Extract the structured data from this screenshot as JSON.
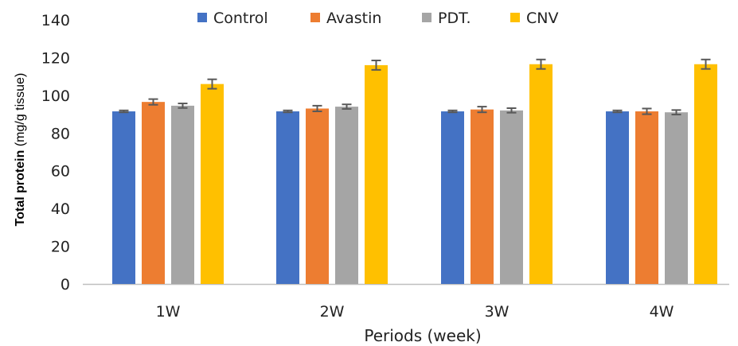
{
  "chart_data": {
    "type": "bar",
    "title": "",
    "categories": [
      "1W",
      "2W",
      "3W",
      "4W"
    ],
    "series": [
      {
        "name": "Control",
        "values": [
          91.5,
          91.5,
          91.5,
          91.5
        ],
        "errors": [
          0.5,
          0.5,
          0.5,
          0.5
        ],
        "color": "#4472C4"
      },
      {
        "name": "Avastin",
        "values": [
          96.5,
          93,
          92.5,
          91.5
        ],
        "errors": [
          1.5,
          1.5,
          1.5,
          1.5
        ],
        "color": "#ED7D31"
      },
      {
        "name": "PDT.",
        "values": [
          94.5,
          94,
          92,
          91
        ],
        "errors": [
          1.2,
          1.2,
          1.2,
          1.2
        ],
        "color": "#A5A5A5"
      },
      {
        "name": "CNV",
        "values": [
          106,
          116,
          116.5,
          116.5
        ],
        "errors": [
          2.5,
          2.5,
          2.5,
          2.5
        ],
        "color": "#FFC000"
      }
    ],
    "xlabel": "Periods (week)",
    "ylabel_bold": "Total protein",
    "ylabel_normal": " (mg/g tissue)",
    "ylim": [
      0,
      140
    ],
    "yticks": [
      0,
      20,
      40,
      60,
      80,
      100,
      120,
      140
    ],
    "grid": false,
    "legend_position": "top",
    "axis_color": "#BFBFBF",
    "errorbar_color": "#595959"
  }
}
